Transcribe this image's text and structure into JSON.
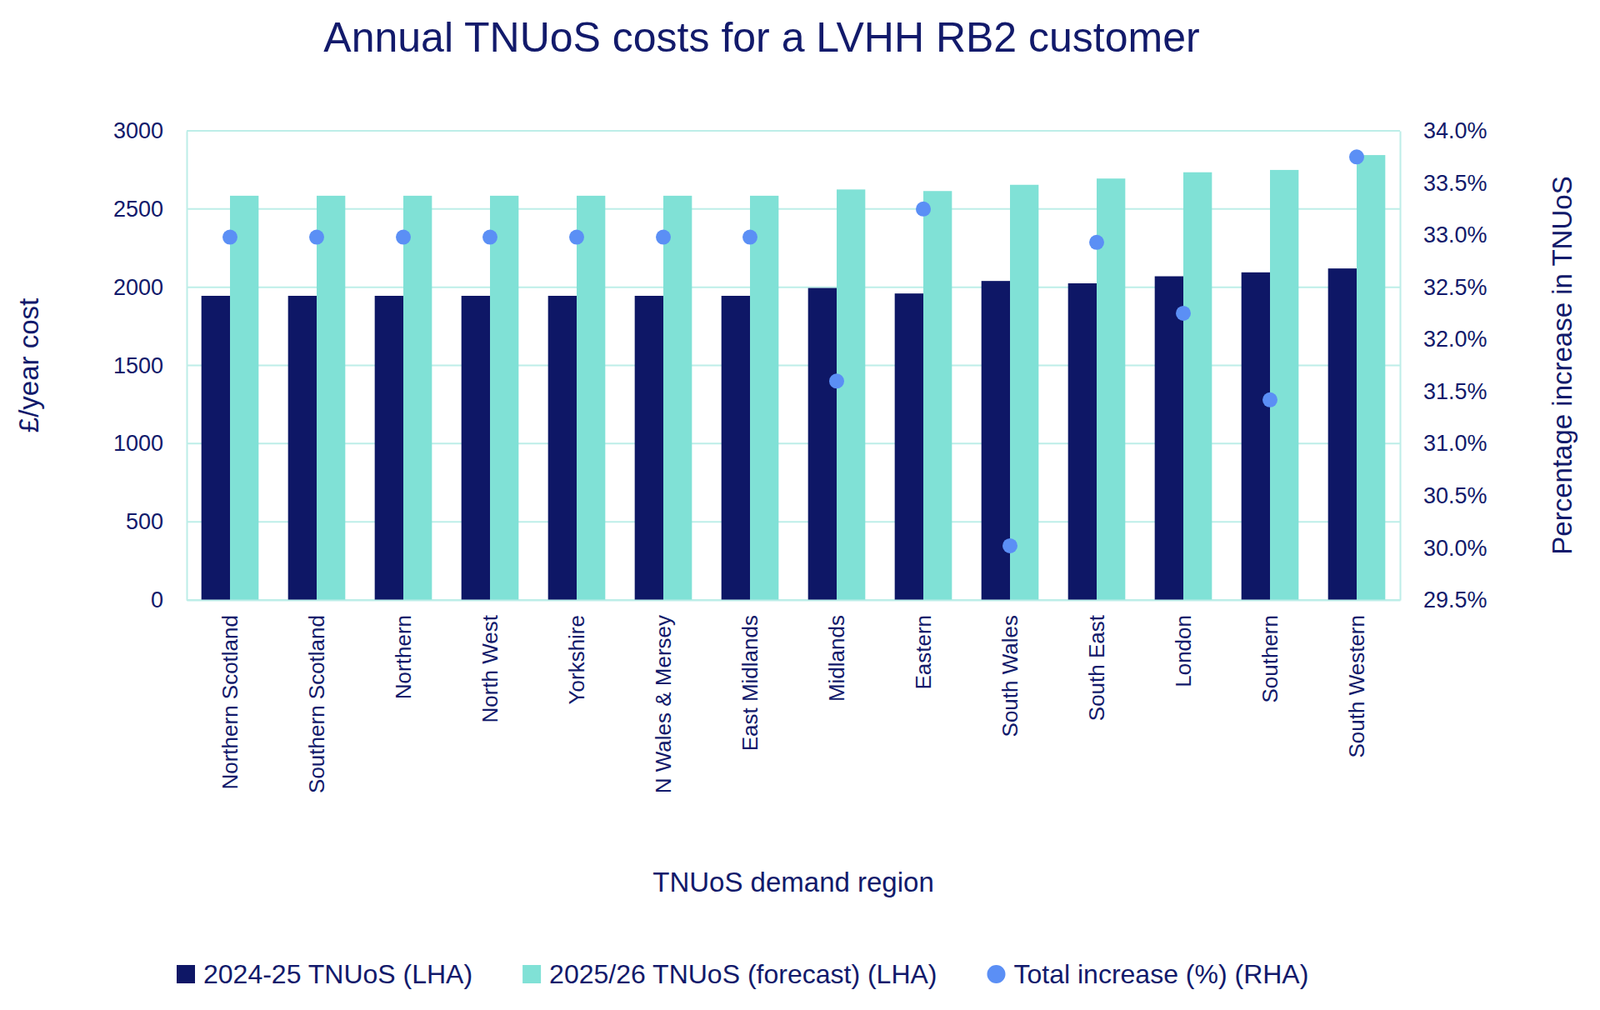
{
  "chart_data": {
    "type": "bar",
    "title": "Annual TNUoS costs for a LVHH RB2 customer",
    "xlabel": "TNUoS demand region",
    "ylabel": "£/year cost",
    "y2label": "Percentage increase in TNUoS",
    "categories": [
      "Northern Scotland",
      "Southern Scotland",
      "Northern",
      "North West",
      "Yorkshire",
      "N Wales & Mersey",
      "East Midlands",
      "Midlands",
      "Eastern",
      "South Wales",
      "South East",
      "London",
      "Southern",
      "South Western"
    ],
    "series": [
      {
        "name": "2024-25 TNUoS (LHA)",
        "type": "bar",
        "color": "#0e1766",
        "values": [
          1945,
          1945,
          1945,
          1945,
          1945,
          1945,
          1945,
          1995,
          1960,
          2040,
          2025,
          2070,
          2095,
          2120
        ]
      },
      {
        "name": "2025/26 TNUoS (forecast) (LHA)",
        "type": "bar",
        "color": "#80e1d6",
        "values": [
          2585,
          2585,
          2585,
          2585,
          2585,
          2585,
          2585,
          2625,
          2615,
          2655,
          2695,
          2735,
          2750,
          2845
        ]
      },
      {
        "name": "Total increase (%) (RHA)",
        "type": "scatter",
        "axis": "y2",
        "color": "#5b8ff5",
        "marker": "circle",
        "values": [
          32.98,
          32.98,
          32.98,
          32.98,
          32.98,
          32.98,
          32.98,
          31.6,
          33.25,
          30.02,
          32.93,
          32.25,
          31.42,
          33.75
        ]
      }
    ],
    "ylim": [
      0,
      3000
    ],
    "yticks": [
      0,
      500,
      1000,
      1500,
      2000,
      2500,
      3000
    ],
    "y2lim": [
      29.5,
      34.0
    ],
    "y2ticks": [
      {
        "value": 29.5,
        "label": "29.5%"
      },
      {
        "value": 30.0,
        "label": "30.0%"
      },
      {
        "value": 30.5,
        "label": "30.5%"
      },
      {
        "value": 31.0,
        "label": "31.0%"
      },
      {
        "value": 31.5,
        "label": "31.5%"
      },
      {
        "value": 32.0,
        "label": "32.0%"
      },
      {
        "value": 32.5,
        "label": "32.5%"
      },
      {
        "value": 33.0,
        "label": "33.0%"
      },
      {
        "value": 33.5,
        "label": "33.5%"
      },
      {
        "value": 34.0,
        "label": "34.0%"
      }
    ],
    "grid": true,
    "legend": "bottom"
  }
}
